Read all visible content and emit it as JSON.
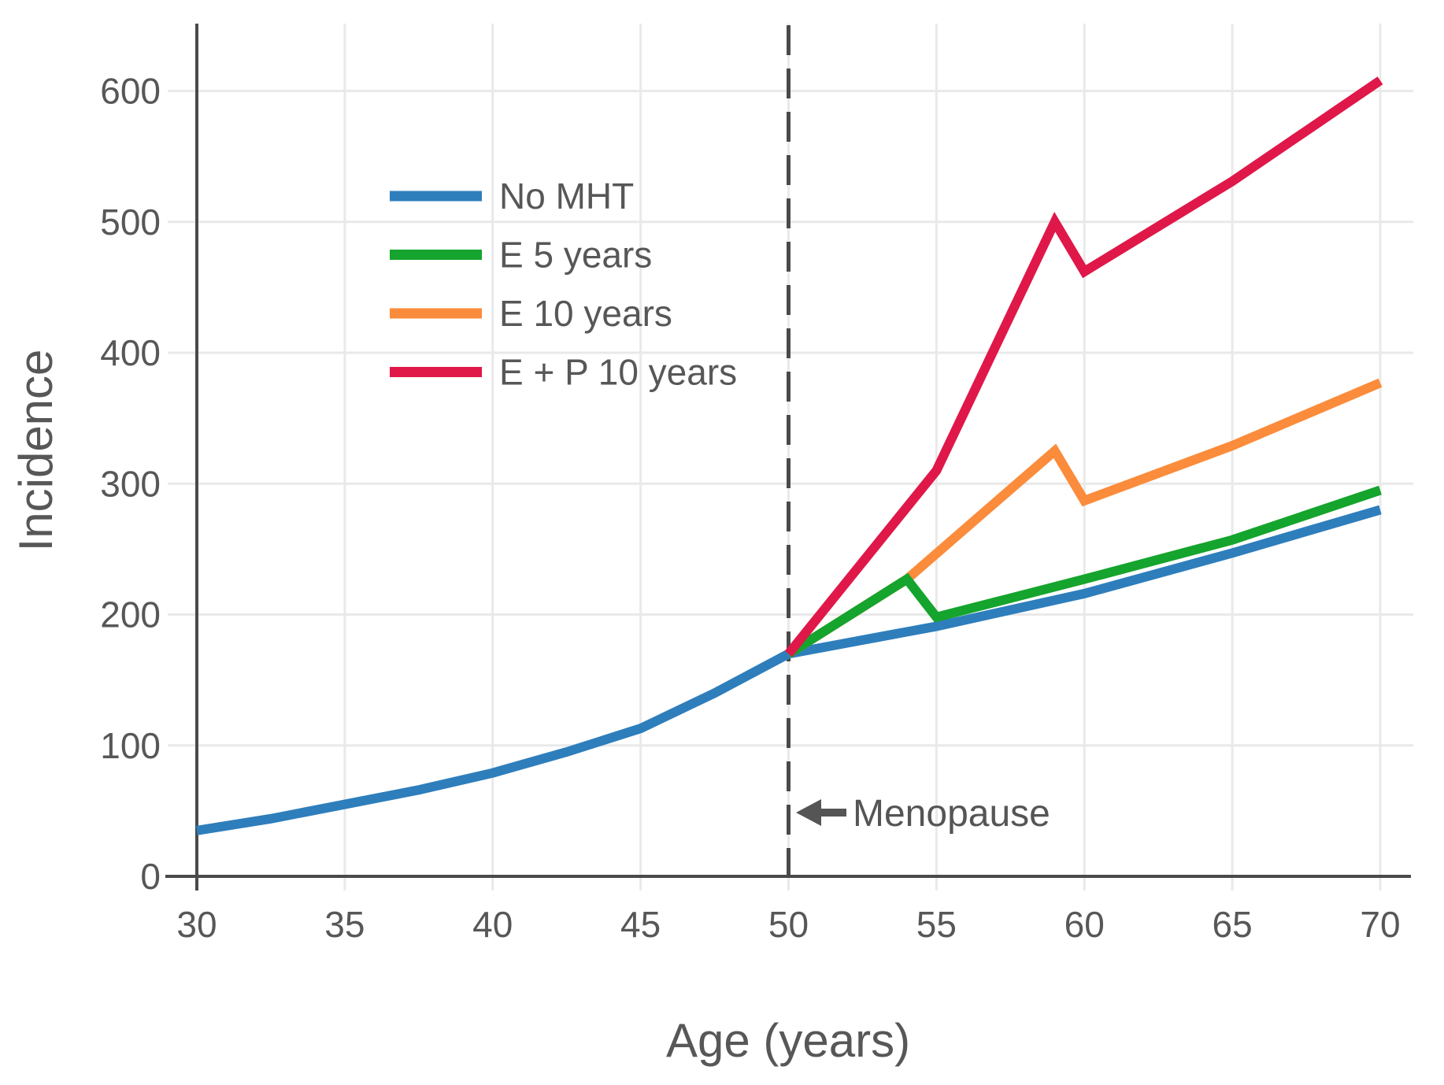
{
  "chart_data": {
    "type": "line",
    "title": "",
    "xlabel": "Age (years)",
    "ylabel": "Incidence",
    "x_ticks": [
      30,
      35,
      40,
      45,
      50,
      55,
      60,
      65,
      70
    ],
    "y_ticks": [
      0,
      100,
      200,
      300,
      400,
      500,
      600
    ],
    "xlim": [
      30,
      71
    ],
    "ylim": [
      0,
      650
    ],
    "grid": true,
    "legend_position": "upper-left-inside",
    "vline": {
      "x": 50,
      "style": "dashed"
    },
    "annotations": [
      {
        "text": "Menopause",
        "arrow": "left",
        "x": 50,
        "y": 49
      }
    ],
    "series": [
      {
        "name": "No MHT",
        "color": "#2e7ebc",
        "points": [
          [
            30,
            35
          ],
          [
            32.5,
            44
          ],
          [
            35,
            55
          ],
          [
            37.5,
            66
          ],
          [
            40,
            79
          ],
          [
            42.5,
            95
          ],
          [
            45,
            113
          ],
          [
            47.5,
            140
          ],
          [
            50,
            170
          ],
          [
            55,
            191
          ],
          [
            60,
            216
          ],
          [
            65,
            247
          ],
          [
            70,
            280
          ]
        ]
      },
      {
        "name": "E 5 years",
        "color": "#15a42d",
        "points": [
          [
            50,
            170
          ],
          [
            54,
            227
          ],
          [
            55,
            198
          ],
          [
            60,
            227
          ],
          [
            65,
            257
          ],
          [
            70,
            295
          ]
        ]
      },
      {
        "name": "E 10 years",
        "color": "#fb8c3b",
        "points": [
          [
            50,
            170
          ],
          [
            54,
            227
          ],
          [
            59,
            325
          ],
          [
            60,
            287
          ],
          [
            65,
            329
          ],
          [
            70,
            377
          ]
        ]
      },
      {
        "name": "E + P 10 years",
        "color": "#df1849",
        "points": [
          [
            50,
            170
          ],
          [
            55,
            310
          ],
          [
            59,
            500
          ],
          [
            60,
            462
          ],
          [
            65,
            531
          ],
          [
            70,
            608
          ]
        ]
      }
    ],
    "style": {
      "grid_color": "#e9e9e9",
      "axis_color": "#4a4a4a",
      "dashed_line_color": "#4a4a4a",
      "text_color": "#575757",
      "annotation_color": "#555555",
      "background": "#ffffff"
    }
  }
}
